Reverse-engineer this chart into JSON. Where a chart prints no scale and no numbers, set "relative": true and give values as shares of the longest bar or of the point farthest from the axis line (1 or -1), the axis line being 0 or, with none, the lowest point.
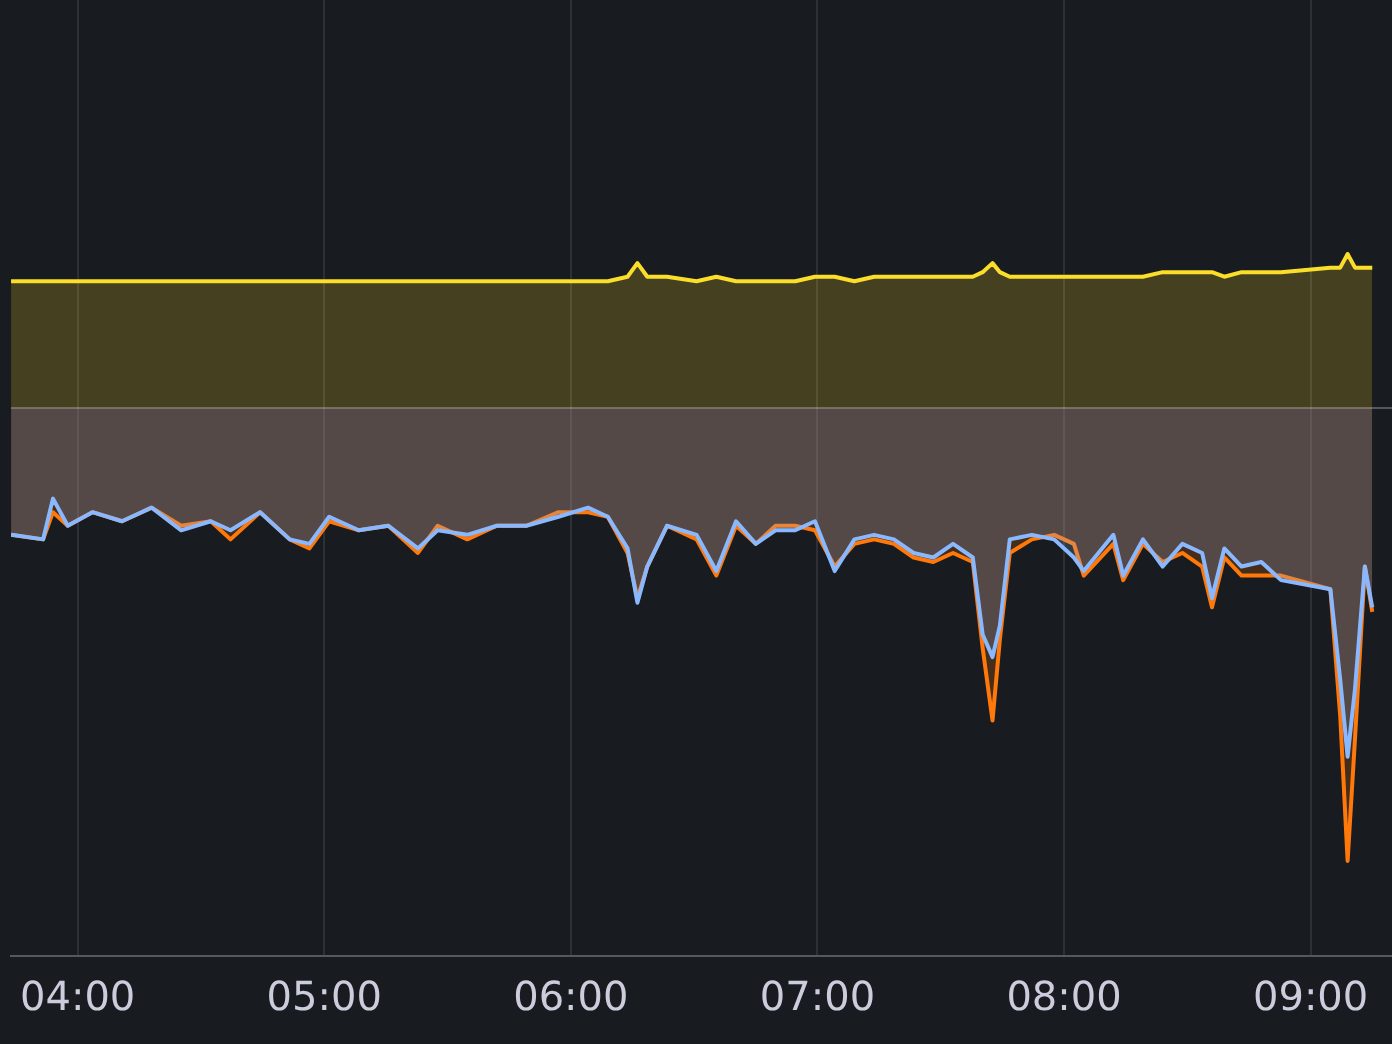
{
  "chart_data": {
    "type": "area",
    "relative": true,
    "grid": "x",
    "legend": false,
    "line_style": "solid",
    "marker": "none",
    "x": [
      3.73,
      3.86,
      3.9,
      3.96,
      4.06,
      4.18,
      4.3,
      4.42,
      4.54,
      4.62,
      4.74,
      4.86,
      4.94,
      5.02,
      5.14,
      5.26,
      5.38,
      5.46,
      5.58,
      5.7,
      5.82,
      5.95,
      6.07,
      6.15,
      6.23,
      6.27,
      6.31,
      6.39,
      6.51,
      6.59,
      6.67,
      6.75,
      6.83,
      6.91,
      6.99,
      7.07,
      7.15,
      7.23,
      7.31,
      7.39,
      7.47,
      7.55,
      7.63,
      7.67,
      7.71,
      7.74,
      7.78,
      7.87,
      7.96,
      8.04,
      8.08,
      8.2,
      8.24,
      8.32,
      8.4,
      8.48,
      8.56,
      8.6,
      8.65,
      8.72,
      8.8,
      8.88,
      9.08,
      9.12,
      9.15,
      9.18,
      9.22,
      9.25
    ],
    "xlim": [
      3.73,
      9.33
    ],
    "xticks": [
      {
        "value": 4,
        "label": "04:00"
      },
      {
        "value": 5,
        "label": "05:00"
      },
      {
        "value": 6,
        "label": "06:00"
      },
      {
        "value": 7,
        "label": "07:00"
      },
      {
        "value": 8,
        "label": "08:00"
      },
      {
        "value": 9,
        "label": "09:00"
      }
    ],
    "series": [
      {
        "color": "#fade2a",
        "values": [
          0.28,
          0.28,
          0.28,
          0.28,
          0.28,
          0.28,
          0.28,
          0.28,
          0.28,
          0.28,
          0.28,
          0.28,
          0.28,
          0.28,
          0.28,
          0.28,
          0.28,
          0.28,
          0.28,
          0.28,
          0.28,
          0.28,
          0.28,
          0.28,
          0.29,
          0.32,
          0.29,
          0.29,
          0.28,
          0.29,
          0.28,
          0.28,
          0.28,
          0.28,
          0.29,
          0.29,
          0.28,
          0.29,
          0.29,
          0.29,
          0.29,
          0.29,
          0.29,
          0.3,
          0.32,
          0.3,
          0.29,
          0.29,
          0.29,
          0.29,
          0.29,
          0.29,
          0.29,
          0.29,
          0.3,
          0.3,
          0.3,
          0.3,
          0.29,
          0.3,
          0.3,
          0.3,
          0.31,
          0.31,
          0.34,
          0.31,
          0.31,
          0.31
        ]
      },
      {
        "color": "#8ab8ff",
        "values": [
          -0.28,
          -0.29,
          -0.2,
          -0.26,
          -0.23,
          -0.25,
          -0.22,
          -0.27,
          -0.25,
          -0.27,
          -0.23,
          -0.29,
          -0.3,
          -0.24,
          -0.27,
          -0.26,
          -0.31,
          -0.27,
          -0.28,
          -0.26,
          -0.26,
          -0.24,
          -0.22,
          -0.24,
          -0.31,
          -0.43,
          -0.35,
          -0.26,
          -0.28,
          -0.36,
          -0.25,
          -0.3,
          -0.27,
          -0.27,
          -0.25,
          -0.36,
          -0.29,
          -0.28,
          -0.29,
          -0.32,
          -0.33,
          -0.3,
          -0.33,
          -0.5,
          -0.55,
          -0.48,
          -0.29,
          -0.28,
          -0.29,
          -0.33,
          -0.36,
          -0.28,
          -0.37,
          -0.29,
          -0.35,
          -0.3,
          -0.32,
          -0.42,
          -0.31,
          -0.35,
          -0.34,
          -0.38,
          -0.4,
          -0.6,
          -0.77,
          -0.62,
          -0.35,
          -0.44
        ]
      },
      {
        "color": "#ff780a",
        "values": [
          -0.28,
          -0.29,
          -0.23,
          -0.26,
          -0.23,
          -0.25,
          -0.22,
          -0.26,
          -0.25,
          -0.29,
          -0.23,
          -0.29,
          -0.31,
          -0.25,
          -0.27,
          -0.26,
          -0.32,
          -0.26,
          -0.29,
          -0.26,
          -0.26,
          -0.23,
          -0.23,
          -0.24,
          -0.32,
          -0.42,
          -0.35,
          -0.26,
          -0.29,
          -0.37,
          -0.26,
          -0.3,
          -0.26,
          -0.26,
          -0.27,
          -0.35,
          -0.3,
          -0.29,
          -0.3,
          -0.33,
          -0.34,
          -0.32,
          -0.34,
          -0.53,
          -0.69,
          -0.51,
          -0.32,
          -0.29,
          -0.28,
          -0.3,
          -0.37,
          -0.3,
          -0.38,
          -0.3,
          -0.34,
          -0.32,
          -0.35,
          -0.44,
          -0.33,
          -0.37,
          -0.37,
          -0.37,
          -0.4,
          -0.68,
          -1,
          -0.73,
          -0.35,
          -0.45
        ]
      }
    ]
  }
}
